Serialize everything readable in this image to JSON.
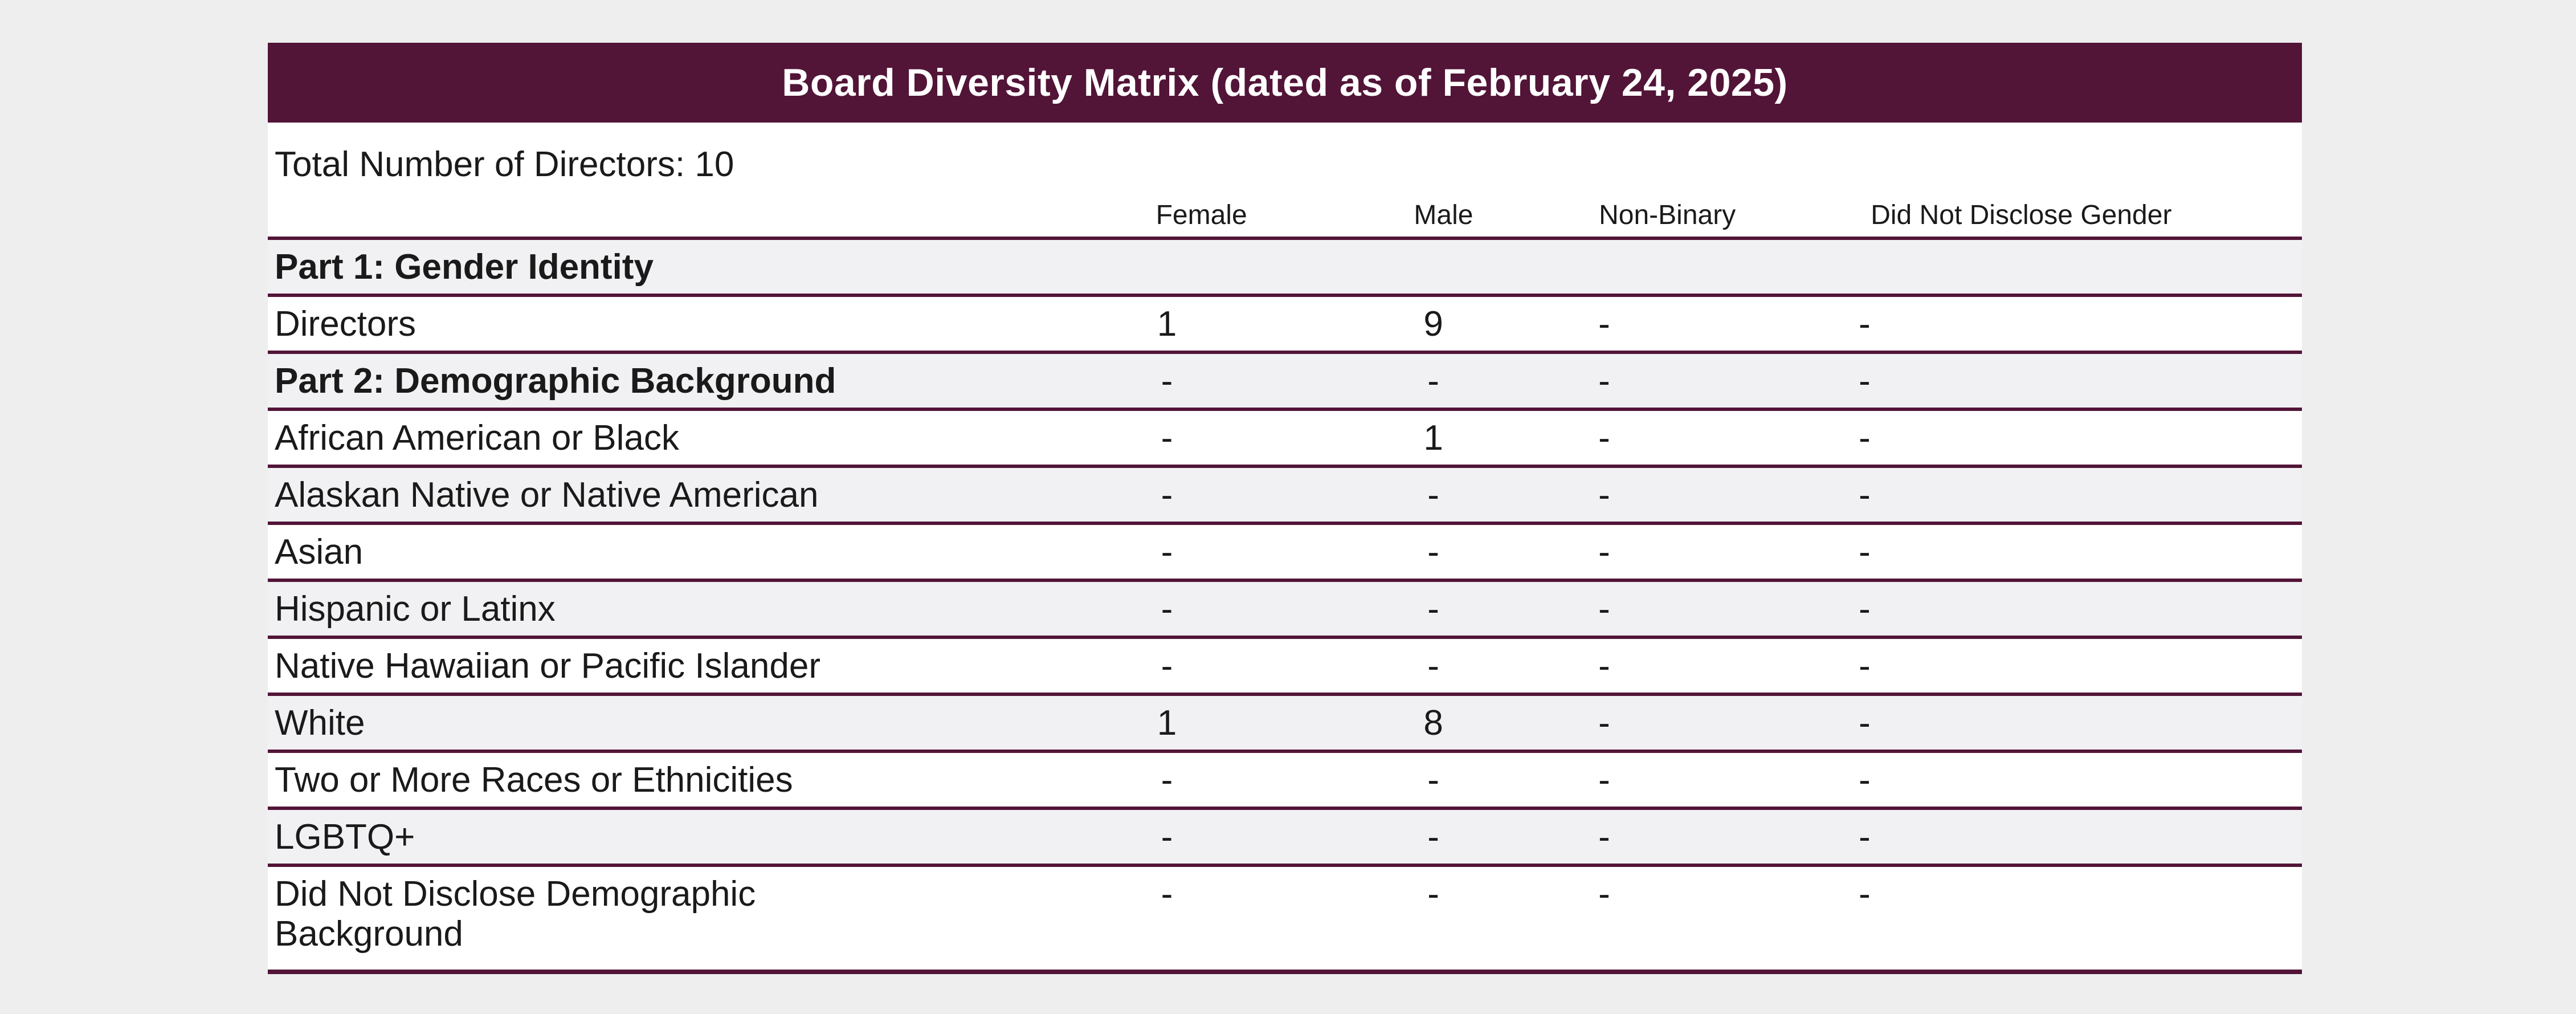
{
  "title": "Board Diversity Matrix (dated as of February 24, 2025)",
  "summary": {
    "total_directors_line": "Total Number of Directors: 10"
  },
  "table": {
    "columns": [
      "Female",
      "Male",
      "Non-Binary",
      "Did Not Disclose Gender"
    ],
    "rows": [
      {
        "label": "Part 1: Gender Identity",
        "values": [
          "",
          "",
          "",
          ""
        ]
      },
      {
        "label": "Directors",
        "values": [
          "1",
          "9",
          "-",
          "-"
        ]
      },
      {
        "label": "Part 2: Demographic Background",
        "values": [
          "-",
          "-",
          "-",
          "-"
        ]
      },
      {
        "label": "African American or Black",
        "values": [
          "-",
          "1",
          "-",
          "-"
        ]
      },
      {
        "label": "Alaskan Native or Native American",
        "values": [
          "-",
          "-",
          "-",
          "-"
        ]
      },
      {
        "label": "Asian",
        "values": [
          "-",
          "-",
          "-",
          "-"
        ]
      },
      {
        "label": "Hispanic or Latinx",
        "values": [
          "-",
          "-",
          "-",
          "-"
        ]
      },
      {
        "label": "Native Hawaiian or Pacific Islander",
        "values": [
          "-",
          "-",
          "-",
          "-"
        ]
      },
      {
        "label": "White",
        "values": [
          "1",
          "8",
          "-",
          "-"
        ]
      },
      {
        "label": "Two or More Races or Ethnicities",
        "values": [
          "-",
          "-",
          "-",
          "-"
        ]
      },
      {
        "label": "LGBTQ+",
        "values": [
          "-",
          "-",
          "-",
          "-"
        ]
      },
      {
        "label": "Did Not Disclose Demographic Background",
        "values": [
          "-",
          "-",
          "-",
          "-"
        ]
      }
    ]
  },
  "colors": {
    "title_bar_bg": "#521437",
    "separator": "#521437",
    "row_shaded_bg": "#F1F1F3",
    "table_bg": "#FFFFFF",
    "page_bg": "#EEEEEF",
    "title_text": "#FFFFFF",
    "body_text": "#1A1A1A"
  }
}
